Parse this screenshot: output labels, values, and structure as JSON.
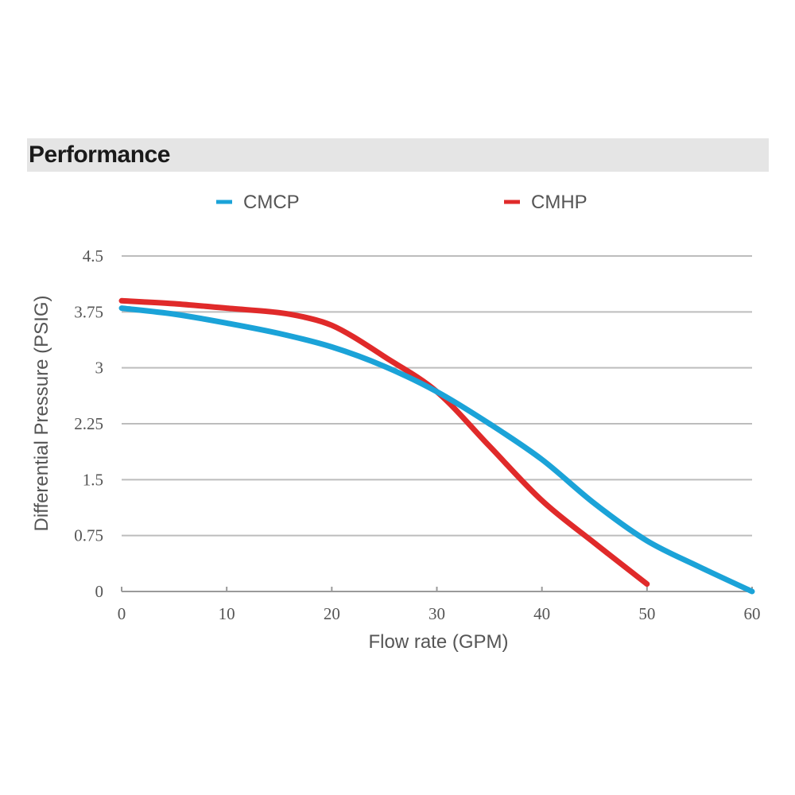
{
  "header": {
    "title": "Performance"
  },
  "colors": {
    "CMCP": "#1ba3d8",
    "CMHP": "#e02a2a",
    "grid": "#bdbdbd",
    "text": "#555555"
  },
  "chart_data": {
    "type": "line",
    "title": "",
    "xlabel": "Flow rate  (GPM)",
    "ylabel": "Differential Pressure (PSIG)",
    "xlim": [
      0,
      60
    ],
    "ylim": [
      0,
      4.5
    ],
    "xticks": [
      0,
      10,
      20,
      30,
      40,
      50,
      60
    ],
    "yticks": [
      0,
      0.75,
      1.5,
      2.25,
      3,
      3.75,
      4.5
    ],
    "ytick_labels": [
      "0",
      "0.75",
      "1.5",
      "2.25",
      "3",
      "3.75",
      "4.5"
    ],
    "grid": "horizontal",
    "legend": "top",
    "series": [
      {
        "name": "CMCP",
        "x": [
          0,
          5,
          10,
          15,
          20,
          25,
          30,
          35,
          40,
          45,
          50,
          55,
          60
        ],
        "y": [
          3.8,
          3.72,
          3.6,
          3.46,
          3.28,
          3.02,
          2.68,
          2.25,
          1.77,
          1.18,
          0.68,
          0.33,
          0.0
        ]
      },
      {
        "name": "CMHP",
        "x": [
          0,
          5,
          10,
          15,
          18,
          20,
          22,
          25,
          30,
          35,
          40,
          45,
          50
        ],
        "y": [
          3.9,
          3.86,
          3.8,
          3.74,
          3.66,
          3.57,
          3.42,
          3.15,
          2.68,
          1.95,
          1.22,
          0.65,
          0.1
        ]
      }
    ]
  }
}
